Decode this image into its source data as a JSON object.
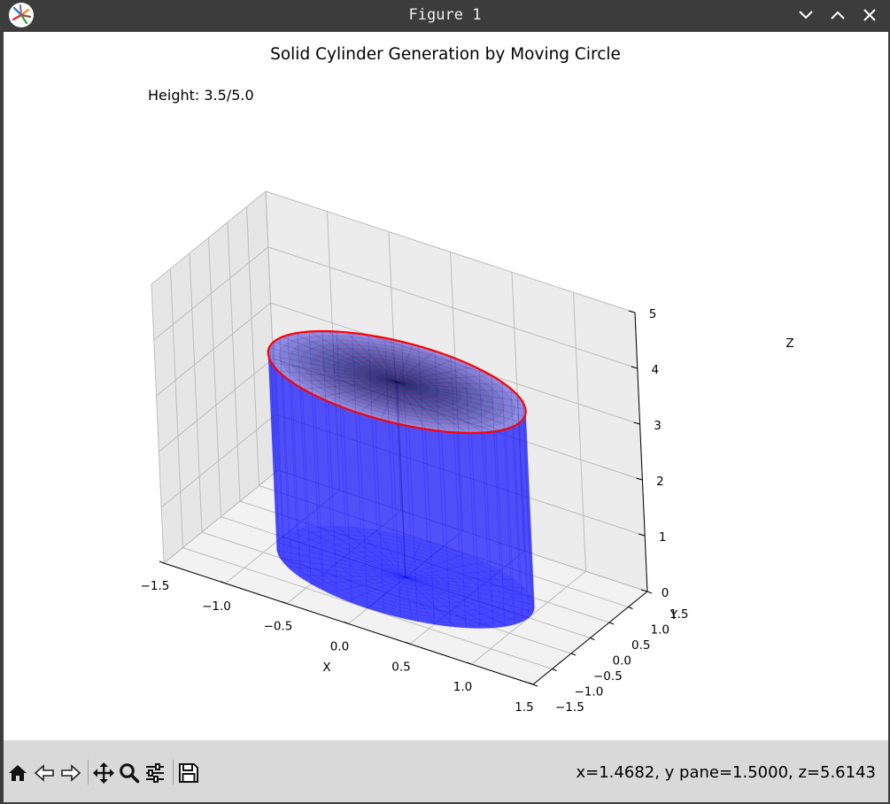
{
  "window": {
    "title": "Figure 1",
    "app_icon": "matplotlib-logo-icon",
    "controls": [
      "minimize-icon",
      "maximize-icon",
      "close-icon"
    ]
  },
  "toolbar": {
    "buttons": [
      "home-icon",
      "back-arrow-icon",
      "forward-arrow-icon",
      "pan-icon",
      "zoom-icon",
      "configure-subplots-icon",
      "save-icon"
    ],
    "coords_text": "x=1.4682, y pane=1.5000, z=5.6143"
  },
  "chart_data": {
    "type": "3d-surface",
    "title": "Solid Cylinder Generation by Moving Circle",
    "annotation": "Height: 3.5/5.0",
    "xlabel": "X",
    "ylabel": "Y",
    "zlabel": "Z",
    "xlim": [
      -1.5,
      1.5
    ],
    "ylim": [
      -1.5,
      1.5
    ],
    "zlim": [
      0,
      5
    ],
    "x_ticks": [
      "−1.5",
      "−1.0",
      "−0.5",
      "0.0",
      "0.5",
      "1.0",
      "1.5"
    ],
    "y_ticks": [
      "−1.5",
      "−1.0",
      "−0.5",
      "0.0",
      "0.5",
      "1.0",
      "1.5"
    ],
    "z_ticks": [
      "0",
      "1",
      "2",
      "3",
      "4",
      "5"
    ],
    "cylinder": {
      "radius": 1.0,
      "z_min": 0,
      "z_max": 3.5,
      "color": "#0000ff"
    },
    "moving_circle": {
      "radius": 1.0,
      "z": 3.5,
      "color": "#ff0000"
    },
    "grid": true
  }
}
